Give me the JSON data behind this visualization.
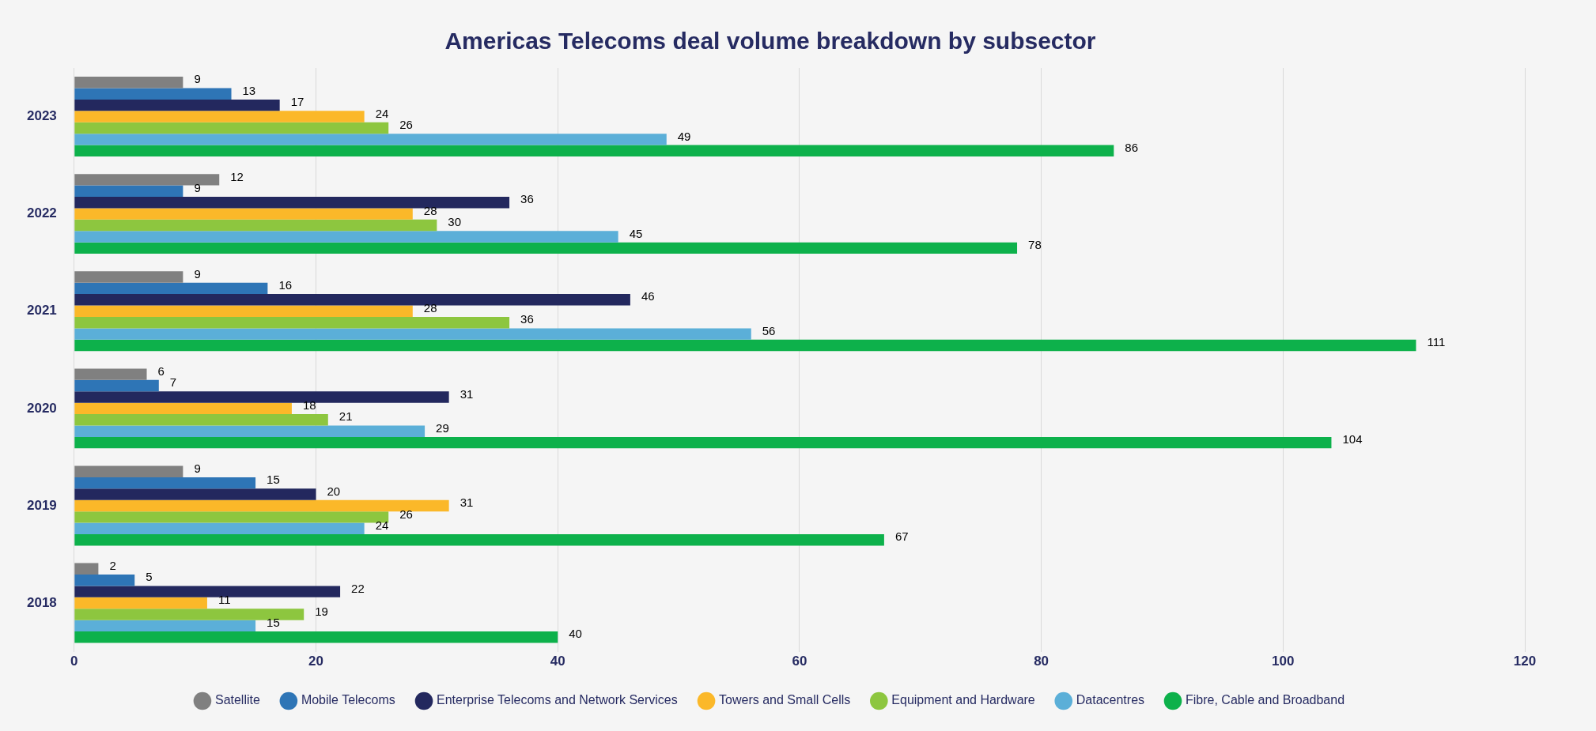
{
  "chart_data": {
    "type": "bar",
    "orientation": "horizontal",
    "title": "Americas Telecoms deal volume breakdown by subsector",
    "categories": [
      "2023",
      "2022",
      "2021",
      "2020",
      "2019",
      "2018"
    ],
    "series": [
      {
        "name": "Satellite",
        "color": "#808080",
        "values": [
          9,
          12,
          9,
          6,
          9,
          2
        ]
      },
      {
        "name": "Mobile Telecoms",
        "color": "#2e75b6",
        "values": [
          13,
          9,
          16,
          7,
          15,
          5
        ]
      },
      {
        "name": "Enterprise Telecoms and Network Services",
        "color": "#23285e",
        "values": [
          17,
          36,
          46,
          31,
          20,
          22
        ]
      },
      {
        "name": "Towers and Small Cells",
        "color": "#fbb829",
        "values": [
          24,
          28,
          28,
          18,
          31,
          11
        ]
      },
      {
        "name": "Equipment and Hardware",
        "color": "#8dc63f",
        "values": [
          26,
          30,
          36,
          21,
          26,
          19
        ]
      },
      {
        "name": "Datacentres",
        "color": "#5bafd8",
        "values": [
          49,
          45,
          56,
          29,
          24,
          15
        ]
      },
      {
        "name": "Fibre, Cable and Broadband",
        "color": "#0db14b",
        "values": [
          86,
          78,
          111,
          104,
          67,
          40
        ]
      }
    ],
    "xlim": [
      0,
      120
    ],
    "xticks": [
      0,
      20,
      40,
      60,
      80,
      100,
      120
    ],
    "grid": "x",
    "legend": "bottom",
    "data_labels": true
  }
}
